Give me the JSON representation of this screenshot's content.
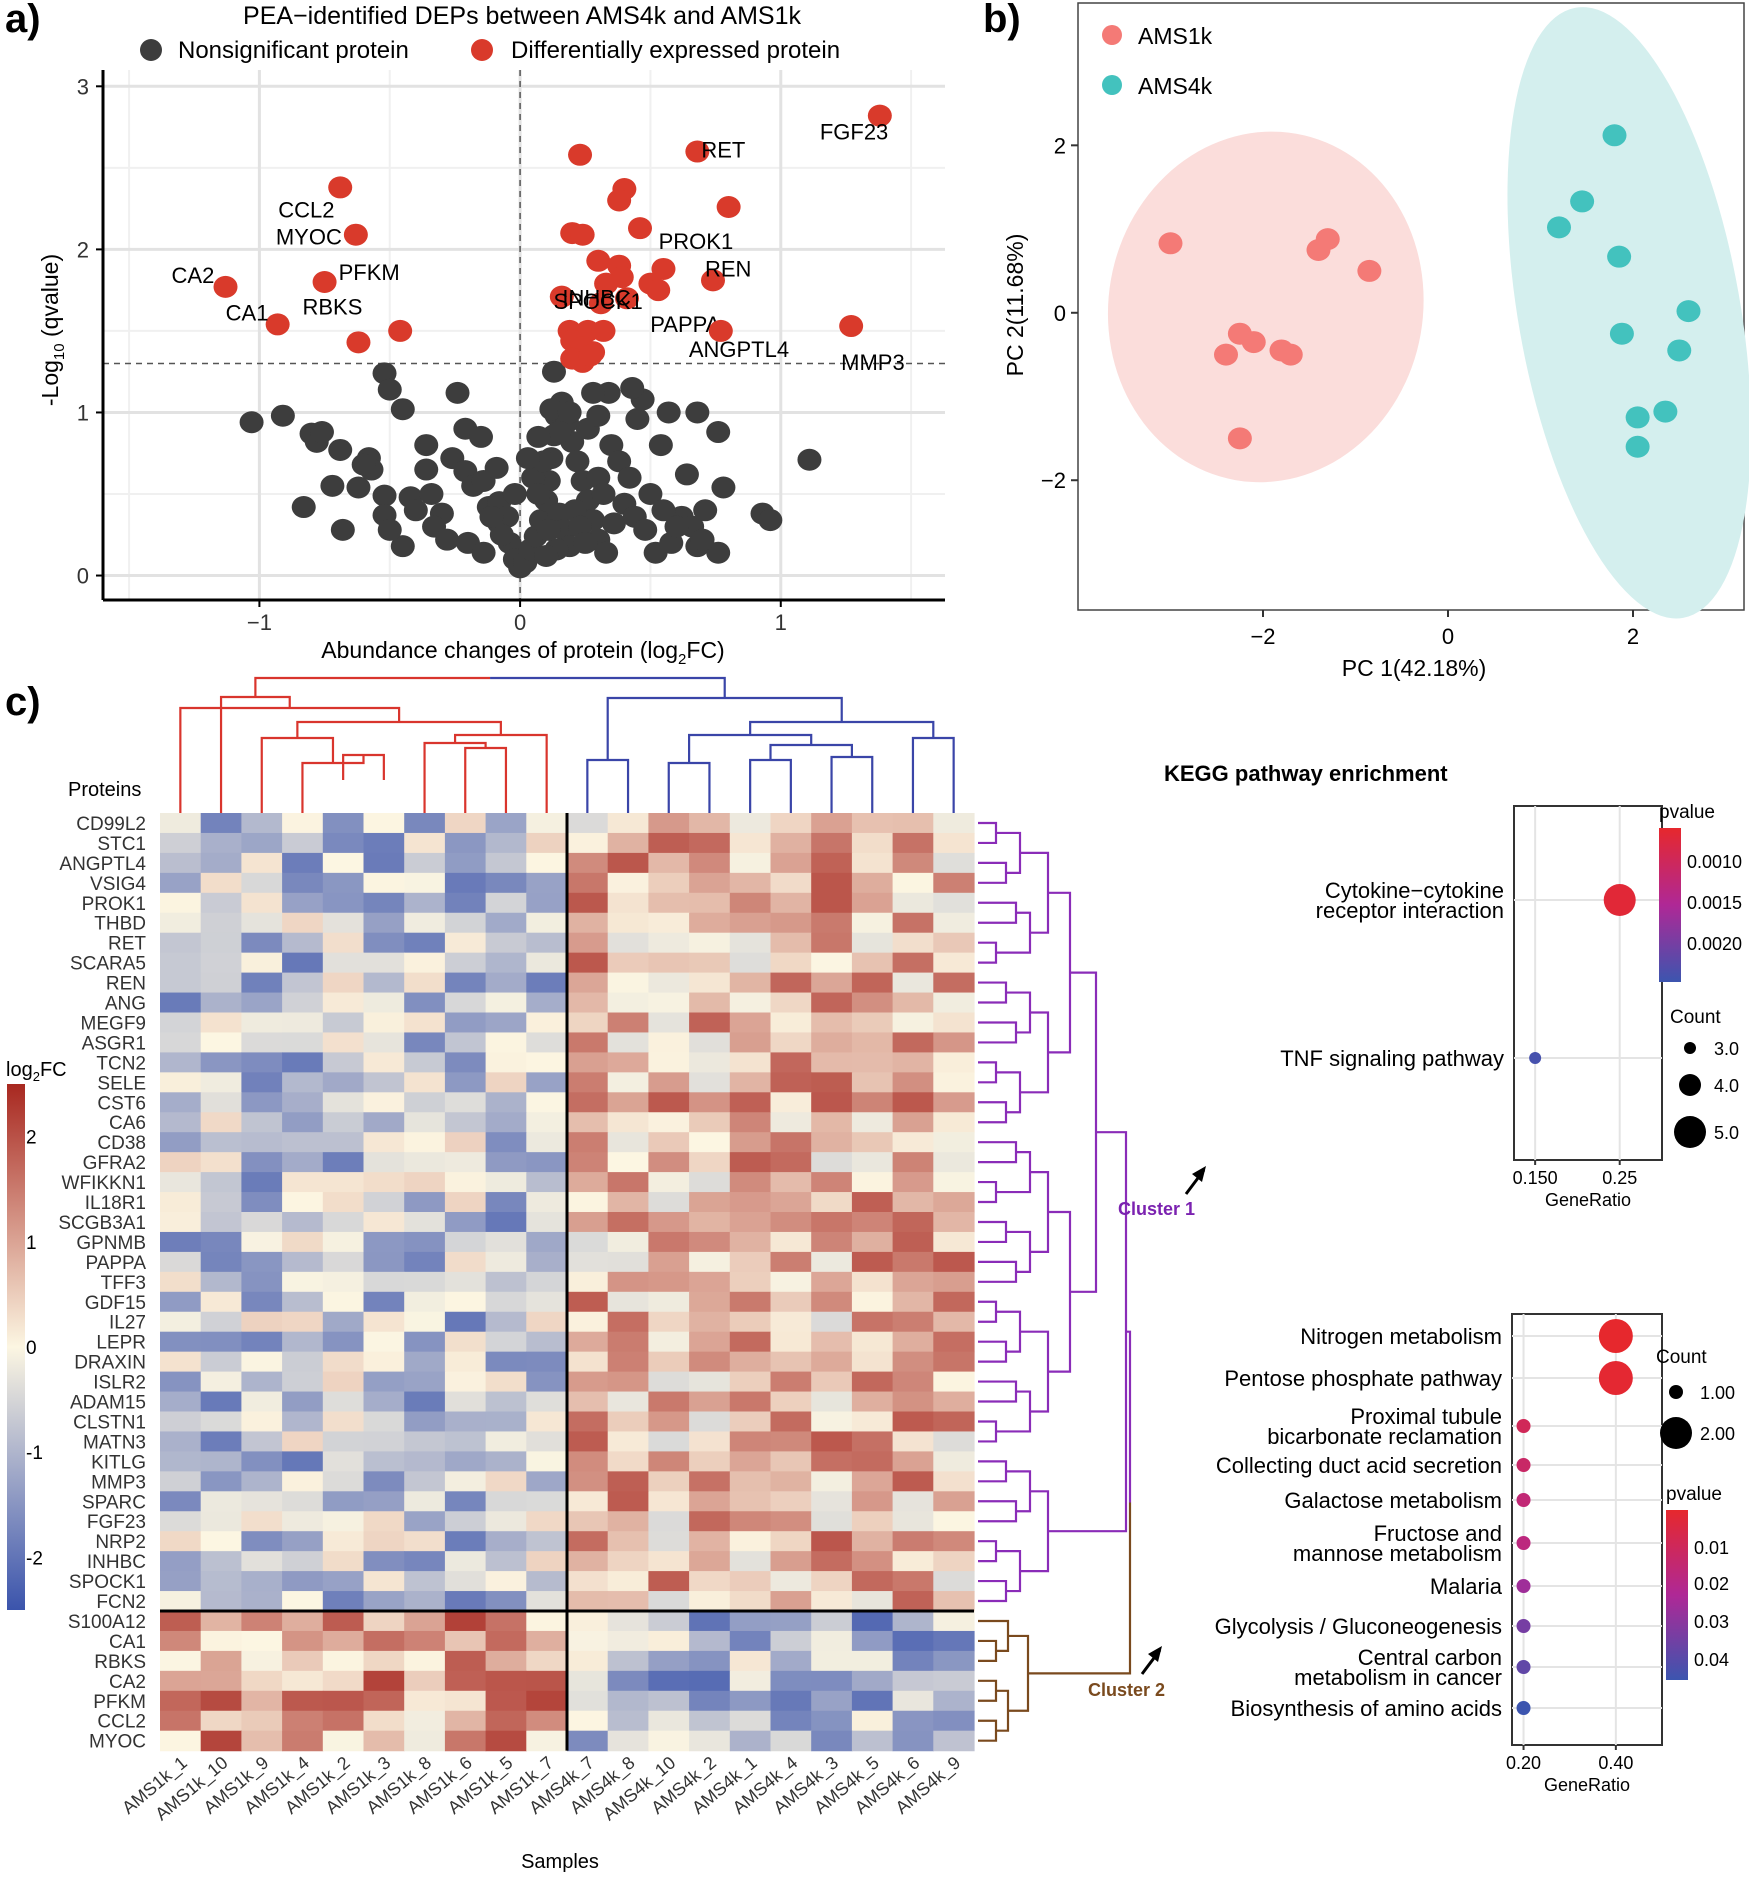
{
  "panels": {
    "a": "a)",
    "b": "b)",
    "c": "c)"
  },
  "chart_data": [
    {
      "id": "volcano",
      "type": "scatter",
      "title": "PEA−identified DEPs between AMS4k and AMS1k",
      "legend": [
        {
          "label": "Nonsignificant protein",
          "color": "#3d3d3d"
        },
        {
          "label": "Differentially expressed protein",
          "color": "#d93a2b"
        }
      ],
      "xlabel": "Abundance changes of protein (log",
      "xlabel_sub": "2",
      "xlabel_tail": "FC)",
      "ylabel": "-Log",
      "ylabel_sub": "10",
      "ylabel_tail": " (qvalue)",
      "xlim": [
        -1.6,
        1.63
      ],
      "ylim": [
        -0.15,
        3.1
      ],
      "xticks": [
        -1,
        0,
        1
      ],
      "xtick_labels": [
        "−1",
        "0",
        "1"
      ],
      "yticks": [
        0,
        1,
        2,
        3
      ],
      "threshold_q": 1.3,
      "significant_labeled": [
        {
          "label": "FGF23",
          "x": 1.38,
          "y": 2.82
        },
        {
          "label": "RET",
          "x": 0.68,
          "y": 2.6
        },
        {
          "label": "PROK1",
          "x": 0.8,
          "y": 2.26
        },
        {
          "label": "SPOCK1",
          "x": 0.55,
          "y": 1.88
        },
        {
          "label": "REN",
          "x": 0.74,
          "y": 1.81
        },
        {
          "label": "INHBC",
          "x": 0.5,
          "y": 1.79
        },
        {
          "label": "PAPPA",
          "x": 0.53,
          "y": 1.75
        },
        {
          "label": "ANGPTL4",
          "x": 0.77,
          "y": 1.5
        },
        {
          "label": "MMP3",
          "x": 1.27,
          "y": 1.53
        },
        {
          "label": "CCL2",
          "x": -0.69,
          "y": 2.38
        },
        {
          "label": "MYOC",
          "x": -0.63,
          "y": 2.09
        },
        {
          "label": "PFKM",
          "x": -0.75,
          "y": 1.8
        },
        {
          "label": "CA2",
          "x": -1.13,
          "y": 1.77
        },
        {
          "label": "CA1",
          "x": -0.93,
          "y": 1.54
        },
        {
          "label": "RBKS",
          "x": -0.62,
          "y": 1.43
        }
      ],
      "significant_other": [
        [
          -0.46,
          1.5
        ],
        [
          0.23,
          2.58
        ],
        [
          0.4,
          2.37
        ],
        [
          0.38,
          2.3
        ],
        [
          0.46,
          2.13
        ],
        [
          0.2,
          2.1
        ],
        [
          0.24,
          2.09
        ],
        [
          0.3,
          1.93
        ],
        [
          0.38,
          1.9
        ],
        [
          0.39,
          1.83
        ],
        [
          0.16,
          1.71
        ],
        [
          0.31,
          1.67
        ],
        [
          0.33,
          1.79
        ],
        [
          0.41,
          1.7
        ],
        [
          0.19,
          1.5
        ],
        [
          0.26,
          1.5
        ],
        [
          0.32,
          1.5
        ],
        [
          0.2,
          1.44
        ],
        [
          0.24,
          1.4
        ],
        [
          0.28,
          1.37
        ],
        [
          0.2,
          1.33
        ],
        [
          0.24,
          1.31
        ],
        [
          0.27,
          1.35
        ]
      ],
      "nonsignificant": [
        [
          -1.03,
          0.94
        ],
        [
          -0.91,
          0.98
        ],
        [
          -0.8,
          0.87
        ],
        [
          -0.78,
          0.82
        ],
        [
          -0.76,
          0.88
        ],
        [
          -0.69,
          0.77
        ],
        [
          -0.58,
          0.72
        ],
        [
          -0.57,
          0.65
        ],
        [
          -0.52,
          0.49
        ],
        [
          -0.62,
          0.54
        ],
        [
          -0.72,
          0.55
        ],
        [
          -0.83,
          0.42
        ],
        [
          -0.68,
          0.28
        ],
        [
          -0.52,
          0.37
        ],
        [
          -0.42,
          0.48
        ],
        [
          -0.34,
          0.5
        ],
        [
          -0.3,
          0.38
        ],
        [
          -0.26,
          0.72
        ],
        [
          -0.21,
          0.64
        ],
        [
          -0.18,
          0.55
        ],
        [
          -0.12,
          0.42
        ],
        [
          -0.08,
          0.32
        ],
        [
          -0.04,
          0.2
        ],
        [
          -0.02,
          0.1
        ],
        [
          0.0,
          0.05
        ],
        [
          0.02,
          0.08
        ],
        [
          0.04,
          0.16
        ],
        [
          0.06,
          0.24
        ],
        [
          0.08,
          0.34
        ],
        [
          0.1,
          0.46
        ],
        [
          0.11,
          0.58
        ],
        [
          0.12,
          0.72
        ],
        [
          0.13,
          0.86
        ],
        [
          0.14,
          0.98
        ],
        [
          0.16,
          1.06
        ],
        [
          0.18,
          0.94
        ],
        [
          0.2,
          0.82
        ],
        [
          0.22,
          0.7
        ],
        [
          0.24,
          0.58
        ],
        [
          0.26,
          0.46
        ],
        [
          0.28,
          0.34
        ],
        [
          0.3,
          0.22
        ],
        [
          0.33,
          0.14
        ],
        [
          0.36,
          0.32
        ],
        [
          0.4,
          0.44
        ],
        [
          0.44,
          0.36
        ],
        [
          0.48,
          0.28
        ],
        [
          0.52,
          0.14
        ],
        [
          0.58,
          0.2
        ],
        [
          0.62,
          0.36
        ],
        [
          0.66,
          0.3
        ],
        [
          0.68,
          0.18
        ],
        [
          0.76,
          0.14
        ],
        [
          0.78,
          0.54
        ],
        [
          0.76,
          0.88
        ],
        [
          0.68,
          1.0
        ],
        [
          0.57,
          1.0
        ],
        [
          0.45,
          0.96
        ],
        [
          0.47,
          1.08
        ],
        [
          0.43,
          1.15
        ],
        [
          0.34,
          1.12
        ],
        [
          0.28,
          1.12
        ],
        [
          0.13,
          1.25
        ],
        [
          0.12,
          1.02
        ],
        [
          -0.52,
          1.24
        ],
        [
          -0.5,
          1.14
        ],
        [
          -0.45,
          1.02
        ],
        [
          -0.36,
          0.8
        ],
        [
          -0.36,
          0.65
        ],
        [
          -0.24,
          1.12
        ],
        [
          -0.21,
          0.9
        ],
        [
          -0.15,
          0.85
        ],
        [
          -0.14,
          0.58
        ],
        [
          -0.09,
          0.66
        ],
        [
          -0.33,
          0.3
        ],
        [
          -0.28,
          0.22
        ],
        [
          -0.2,
          0.2
        ],
        [
          -0.14,
          0.14
        ],
        [
          -0.45,
          0.18
        ],
        [
          -0.5,
          0.28
        ],
        [
          -0.08,
          0.45
        ],
        [
          -0.05,
          0.36
        ],
        [
          0.05,
          0.6
        ],
        [
          0.07,
          0.5
        ],
        [
          0.09,
          0.7
        ],
        [
          0.15,
          0.38
        ],
        [
          0.17,
          0.28
        ],
        [
          0.19,
          0.18
        ],
        [
          0.21,
          0.4
        ],
        [
          0.23,
          0.3
        ],
        [
          0.25,
          0.2
        ],
        [
          0.3,
          0.6
        ],
        [
          0.32,
          0.5
        ],
        [
          0.35,
          0.8
        ],
        [
          0.38,
          0.7
        ],
        [
          0.42,
          0.6
        ],
        [
          0.5,
          0.5
        ],
        [
          0.55,
          0.4
        ],
        [
          0.6,
          0.3
        ],
        [
          0.7,
          0.22
        ],
        [
          0.93,
          0.38
        ],
        [
          0.96,
          0.34
        ],
        [
          1.11,
          0.71
        ],
        [
          -0.6,
          0.68
        ],
        [
          -0.4,
          0.4
        ],
        [
          0.14,
          0.16
        ],
        [
          0.11,
          0.28
        ],
        [
          0.1,
          0.12
        ],
        [
          0.26,
          0.9
        ],
        [
          0.3,
          0.98
        ],
        [
          0.15,
          0.88
        ],
        [
          0.19,
          1.0
        ],
        [
          0.07,
          0.85
        ],
        [
          0.03,
          0.72
        ],
        [
          -0.02,
          0.5
        ],
        [
          -0.07,
          0.25
        ],
        [
          -0.11,
          0.36
        ],
        [
          0.54,
          0.8
        ],
        [
          0.64,
          0.62
        ],
        [
          0.71,
          0.4
        ]
      ]
    },
    {
      "id": "pca",
      "type": "scatter",
      "xlabel": "PC 1(42.18%)",
      "ylabel": "PC 2(11.68%)",
      "xlim": [
        -4.0,
        3.2
      ],
      "ylim": [
        -3.55,
        3.7
      ],
      "xticks": [
        -2,
        0,
        2
      ],
      "xtick_labels": [
        "−2",
        "0",
        "2"
      ],
      "yticks": [
        -2,
        0,
        2
      ],
      "ytick_labels": [
        "−2",
        "0",
        "2"
      ],
      "series": [
        {
          "name": "AMS1k",
          "color": "#f47a76",
          "ellipse_color": "#fbdddb",
          "points": [
            [
              -3.0,
              0.83
            ],
            [
              -1.3,
              0.88
            ],
            [
              -1.4,
              0.75
            ],
            [
              -0.85,
              0.5
            ],
            [
              -2.25,
              -0.25
            ],
            [
              -2.1,
              -0.35
            ],
            [
              -2.4,
              -0.5
            ],
            [
              -1.7,
              -0.5
            ],
            [
              -1.8,
              -0.45
            ],
            [
              -2.25,
              -1.5
            ]
          ],
          "ellipse": {
            "cx": -1.97,
            "cy": 0.07,
            "rx": 1.7,
            "ry": 2.1,
            "angle": 10
          }
        },
        {
          "name": "AMS4k",
          "color": "#43c2be",
          "ellipse_color": "#d4efee",
          "points": [
            [
              1.8,
              2.12
            ],
            [
              1.45,
              1.33
            ],
            [
              1.2,
              1.02
            ],
            [
              1.85,
              0.67
            ],
            [
              2.6,
              0.02
            ],
            [
              1.88,
              -0.25
            ],
            [
              2.5,
              -0.45
            ],
            [
              2.35,
              -1.18
            ],
            [
              2.05,
              -1.25
            ],
            [
              2.05,
              -1.6
            ]
          ],
          "ellipse": {
            "cx": 1.96,
            "cy": 0.0,
            "rx": 1.2,
            "ry": 3.7,
            "angle": -10
          }
        }
      ]
    },
    {
      "id": "heatmap",
      "type": "heatmap",
      "row_header": "Proteins",
      "xlabel": "Samples",
      "legend_title": "log",
      "legend_title_sub": "2",
      "legend_title_tail": "FC",
      "color_range": [
        -2.5,
        2.5
      ],
      "legend_ticks": [
        2,
        1,
        0,
        -1,
        -2
      ],
      "columns": [
        "AMS1k_1",
        "AMS1k_10",
        "AMS1k_9",
        "AMS1k_4",
        "AMS1k_2",
        "AMS1k_3",
        "AMS1k_8",
        "AMS1k_6",
        "AMS1k_5",
        "AMS1k_7",
        "AMS4k_7",
        "AMS4k_8",
        "AMS4k_10",
        "AMS4k_2",
        "AMS4k_1",
        "AMS4k_4",
        "AMS4k_3",
        "AMS4k_5",
        "AMS4k_6",
        "AMS4k_9"
      ],
      "rows": [
        "CD99L2",
        "STC1",
        "ANGPTL4",
        "VSIG4",
        "PROK1",
        "THBD",
        "RET",
        "SCARA5",
        "REN",
        "ANG",
        "MEGF9",
        "ASGR1",
        "TCN2",
        "SELE",
        "CST6",
        "CA6",
        "CD38",
        "GFRA2",
        "WFIKKN1",
        "IL18R1",
        "SCGB3A1",
        "GPNMB",
        "PAPPA",
        "TFF3",
        "GDF15",
        "IL27",
        "LEPR",
        "DRAXIN",
        "ISLR2",
        "ADAM15",
        "CLSTN1",
        "MATN3",
        "KITLG",
        "MMP3",
        "SPARC",
        "FGF23",
        "NRP2",
        "INHBC",
        "SPOCK1",
        "FCN2",
        "S100A12",
        "CA1",
        "RBKS",
        "CA2",
        "PFKM",
        "CCL2",
        "MYOC"
      ],
      "cluster1_rows": 40,
      "cluster_labels": [
        "Cluster 1",
        "Cluster 2"
      ]
    },
    {
      "id": "kegg1",
      "type": "scatter",
      "title": "KEGG pathway enrichment",
      "xlabel": "GeneRatio",
      "xlim": [
        0.125,
        0.3
      ],
      "xticks": [
        0.15,
        0.25
      ],
      "xtick_labels": [
        "0.150",
        "0.25"
      ],
      "terms": [
        "Cytokine−cytokine\nreceptor interaction",
        "TNF signaling pathway"
      ],
      "gene_ratio": [
        0.25,
        0.15
      ],
      "count": [
        5,
        3
      ],
      "pvalue": [
        0.0008,
        0.0028
      ],
      "pvalue_legend": {
        "title": "pvalue",
        "labels": [
          "0.0010",
          "0.0015",
          "0.0020"
        ]
      },
      "count_legend": {
        "title": "Count",
        "labels": [
          "3.0",
          "4.0",
          "5.0"
        ]
      }
    },
    {
      "id": "kegg2",
      "type": "scatter",
      "xlabel": "GeneRatio",
      "xlim": [
        0.175,
        0.5
      ],
      "xticks": [
        0.2,
        0.4
      ],
      "xtick_labels": [
        "0.20",
        "0.40"
      ],
      "terms": [
        "Nitrogen metabolism",
        "Pentose phosphate pathway",
        "Proximal tubule\nbicarbonate reclamation",
        "Collecting duct acid secretion",
        "Galactose metabolism",
        "Fructose and\nmannose metabolism",
        "Malaria",
        "Glycolysis / Gluconeogenesis",
        "Central carbon\nmetabolism in cancer",
        "Biosynthesis of amino acids"
      ],
      "gene_ratio": [
        0.4,
        0.4,
        0.2,
        0.2,
        0.2,
        0.2,
        0.2,
        0.2,
        0.2,
        0.2
      ],
      "count": [
        2,
        2,
        1,
        1,
        1,
        1,
        1,
        1,
        1,
        1
      ],
      "pvalue": [
        0.003,
        0.004,
        0.012,
        0.015,
        0.018,
        0.02,
        0.028,
        0.036,
        0.04,
        0.047
      ],
      "pvalue_legend": {
        "title": "pvalue",
        "labels": [
          "0.01",
          "0.02",
          "0.03",
          "0.04"
        ]
      },
      "count_legend": {
        "title": "Count",
        "labels": [
          "1.00",
          "2.00"
        ]
      }
    }
  ]
}
